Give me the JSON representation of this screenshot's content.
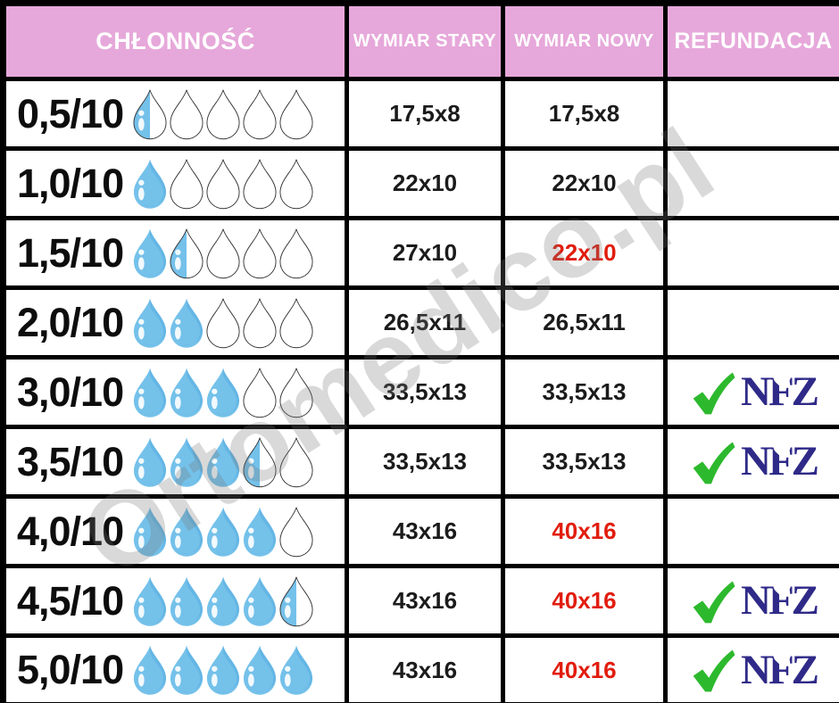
{
  "header": {
    "chlonnosc": "CHŁONNOŚĆ",
    "wymiar_stary": "WYMIAR STARY",
    "wymiar_nowy": "WYMIAR NOWY",
    "refundacja": "REFUNDACJA"
  },
  "watermark": "Ortomedico.pl",
  "nfz": {
    "label": "NFZ",
    "heart_glyph": "♥",
    "check_icon": "green-check-icon",
    "heart_icon": "white-heart-icon"
  },
  "colors": {
    "header_pink": "#e6a8da",
    "border_black": "#000000",
    "value_changed_red": "#e11d0e",
    "drop_blue": "#74c1ea",
    "drop_shade_blue": "#58ade0",
    "drop_outline": "#333333",
    "check_green": "#2db92d",
    "nfz_blue": "#2f2a88"
  },
  "rows": [
    {
      "label": "0,5/10",
      "drops": {
        "full": 0,
        "half": 1,
        "empty": 4
      },
      "old": "17,5x8",
      "new": "17,5x8",
      "new_changed": false,
      "refund": false
    },
    {
      "label": "1,0/10",
      "drops": {
        "full": 1,
        "half": 0,
        "empty": 4
      },
      "old": "22x10",
      "new": "22x10",
      "new_changed": false,
      "refund": false
    },
    {
      "label": "1,5/10",
      "drops": {
        "full": 1,
        "half": 1,
        "empty": 3
      },
      "old": "27x10",
      "new": "22x10",
      "new_changed": true,
      "refund": false
    },
    {
      "label": "2,0/10",
      "drops": {
        "full": 2,
        "half": 0,
        "empty": 3
      },
      "old": "26,5x11",
      "new": "26,5x11",
      "new_changed": false,
      "refund": false
    },
    {
      "label": "3,0/10",
      "drops": {
        "full": 3,
        "half": 0,
        "empty": 2
      },
      "old": "33,5x13",
      "new": "33,5x13",
      "new_changed": false,
      "refund": true
    },
    {
      "label": "3,5/10",
      "drops": {
        "full": 3,
        "half": 1,
        "empty": 1
      },
      "old": "33,5x13",
      "new": "33,5x13",
      "new_changed": false,
      "refund": true
    },
    {
      "label": "4,0/10",
      "drops": {
        "full": 4,
        "half": 0,
        "empty": 1
      },
      "old": "43x16",
      "new": "40x16",
      "new_changed": true,
      "refund": false
    },
    {
      "label": "4,5/10",
      "drops": {
        "full": 4,
        "half": 1,
        "empty": 0
      },
      "old": "43x16",
      "new": "40x16",
      "new_changed": true,
      "refund": true
    },
    {
      "label": "5,0/10",
      "drops": {
        "full": 5,
        "half": 0,
        "empty": 0
      },
      "old": "43x16",
      "new": "40x16",
      "new_changed": true,
      "refund": true
    }
  ],
  "chart_data": {
    "type": "table",
    "title": "",
    "columns": [
      "CHŁONNOŚĆ",
      "WYMIAR STARY",
      "WYMIAR NOWY",
      "REFUNDACJA"
    ],
    "rows": [
      {
        "chlonnosc": "0,5/10",
        "drop_rating_of_5": 0.5,
        "wymiar_stary": "17,5x8",
        "wymiar_nowy": "17,5x8",
        "nowy_highlighted_red": false,
        "refundacja_nfz": false
      },
      {
        "chlonnosc": "1,0/10",
        "drop_rating_of_5": 1.0,
        "wymiar_stary": "22x10",
        "wymiar_nowy": "22x10",
        "nowy_highlighted_red": false,
        "refundacja_nfz": false
      },
      {
        "chlonnosc": "1,5/10",
        "drop_rating_of_5": 1.5,
        "wymiar_stary": "27x10",
        "wymiar_nowy": "22x10",
        "nowy_highlighted_red": true,
        "refundacja_nfz": false
      },
      {
        "chlonnosc": "2,0/10",
        "drop_rating_of_5": 2.0,
        "wymiar_stary": "26,5x11",
        "wymiar_nowy": "26,5x11",
        "nowy_highlighted_red": false,
        "refundacja_nfz": false
      },
      {
        "chlonnosc": "3,0/10",
        "drop_rating_of_5": 3.0,
        "wymiar_stary": "33,5x13",
        "wymiar_nowy": "33,5x13",
        "nowy_highlighted_red": false,
        "refundacja_nfz": true
      },
      {
        "chlonnosc": "3,5/10",
        "drop_rating_of_5": 3.5,
        "wymiar_stary": "33,5x13",
        "wymiar_nowy": "33,5x13",
        "nowy_highlighted_red": false,
        "refundacja_nfz": true
      },
      {
        "chlonnosc": "4,0/10",
        "drop_rating_of_5": 4.0,
        "wymiar_stary": "43x16",
        "wymiar_nowy": "40x16",
        "nowy_highlighted_red": true,
        "refundacja_nfz": false
      },
      {
        "chlonnosc": "4,5/10",
        "drop_rating_of_5": 4.5,
        "wymiar_stary": "43x16",
        "wymiar_nowy": "40x16",
        "nowy_highlighted_red": true,
        "refundacja_nfz": true
      },
      {
        "chlonnosc": "5,0/10",
        "drop_rating_of_5": 5.0,
        "wymiar_stary": "43x16",
        "wymiar_nowy": "40x16",
        "nowy_highlighted_red": true,
        "refundacja_nfz": true
      }
    ]
  }
}
